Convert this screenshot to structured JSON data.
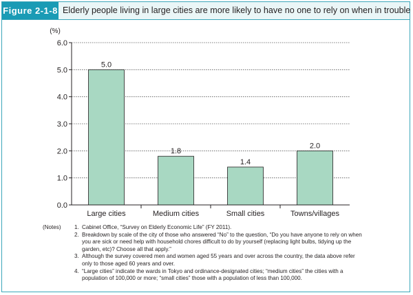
{
  "figure": {
    "label": "Figure 2-1-8",
    "title": "Elderly people living in large cities are more likely to have no one to rely on when in trouble"
  },
  "chart_data": {
    "type": "bar",
    "categories": [
      "Large cities",
      "Medium cities",
      "Small cities",
      "Towns/villages"
    ],
    "values": [
      5.0,
      1.8,
      1.4,
      2.0
    ],
    "value_labels": [
      "5.0",
      "1.8",
      "1.4",
      "2.0"
    ],
    "ylabel": "(%)",
    "ylim": [
      0,
      6.0
    ],
    "yticks": [
      "0.0",
      "1.0",
      "2.0",
      "3.0",
      "4.0",
      "5.0",
      "6.0"
    ],
    "grid": true,
    "grid_style": "dotted",
    "bar_color": "#a8d8c2",
    "bar_edge_color": "#231f20"
  },
  "notes": {
    "prefix": "(Notes)",
    "items": [
      {
        "num": "1.",
        "text": "Cabinet Office, “Survey on Elderly Economic Life” (FY 2011)."
      },
      {
        "num": "2.",
        "text": "Breakdown by scale of the city of those who answered “No” to the question, “Do you have anyone to rely on when you are sick or need help with household chores difficult to do by yourself (replacing light bulbs, tidying up the garden, etc)? Choose all that apply.”"
      },
      {
        "num": "3.",
        "text": "Although the survey covered men and women aged 55 years and over across the country, the data above refer only to those aged 60 years and over."
      },
      {
        "num": "4.",
        "text": "“Large cities” indicate the wards in Tokyo and ordinance-designated cities; “medium cities” the cities with a population of 100,000 or more; “small cities” those with a population of less than 100,000."
      }
    ]
  }
}
